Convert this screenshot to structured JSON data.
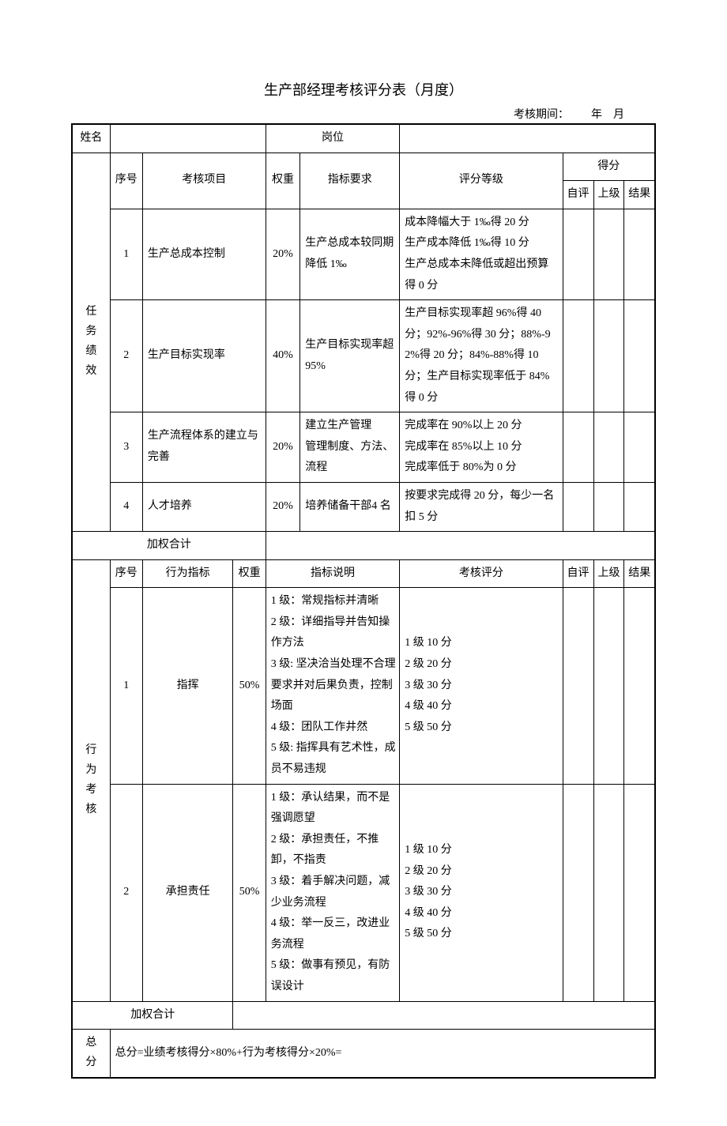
{
  "title": "生产部经理考核评分表（月度）",
  "period_prefix": "考核期间：",
  "period_year": "年",
  "period_month": "月",
  "header": {
    "name_label": "姓名",
    "position_label": "岗位"
  },
  "task_section": {
    "vertical_label": "任务绩效",
    "seq_label": "序号",
    "item_label": "考核项目",
    "weight_label": "权重",
    "req_label": "指标要求",
    "grade_label": "评分等级",
    "score_label": "得分",
    "self_label": "自评",
    "sup_label": "上级",
    "result_label": "结果",
    "rows": [
      {
        "no": "1",
        "item": "生产总成本控制",
        "weight": "20%",
        "requirement": "生产总成本较同期降低 1‰",
        "grade": "成本降幅大于 1‰得 20 分\n生产成本降低 1‰得 10 分\n生产总成本未降低或超出预算得 0 分"
      },
      {
        "no": "2",
        "item": "生产目标实现率",
        "weight": "40%",
        "requirement": "生产目标实现率超 95%",
        "grade": "生产目标实现率超 96%得 40 分；92%-96%得 30 分；88%-92%得 20 分；84%-88%得 10 分；生产目标实现率低于 84%得 0 分"
      },
      {
        "no": "3",
        "item": "生产流程体系的建立与完善",
        "weight": "20%",
        "requirement": "建立生产管理\n管理制度、方法、\n流程",
        "grade": "完成率在 90%以上 20 分\n完成率在 85%以上 10 分\n完成率低于 80%为 0 分"
      },
      {
        "no": "4",
        "item": "人才培养",
        "weight": "20%",
        "requirement": "培养储备干部4 名",
        "grade": "按要求完成得 20 分，每少一名扣 5 分"
      }
    ],
    "weighted_total_label": "加权合计"
  },
  "behavior_section": {
    "vertical_label": "行为考核",
    "seq_label": "序号",
    "item_label": "行为指标",
    "weight_label": "权重",
    "desc_label": "指标说明",
    "grade_label": "考核评分",
    "self_label": "自评",
    "sup_label": "上级",
    "result_label": "结果",
    "rows": [
      {
        "no": "1",
        "item": "指挥",
        "weight": "50%",
        "desc": "1 级：常规指标并清晰\n2 级：详细指导并告知操作方法\n3 级: 坚决洽当处理不合理要求并对后果负责，控制场面\n4 级：团队工作井然\n5 级: 指挥具有艺术性，成员不易违规",
        "grade": "1 级 10 分\n2 级 20 分\n3 级 30 分\n4 级 40 分\n5 级 50 分"
      },
      {
        "no": "2",
        "item": "承担责任",
        "weight": "50%",
        "desc": "1 级：承认结果，而不是强调愿望\n2 级：承担责任，不推卸，不指责\n3 级：着手解决问题，减少业务流程\n4 级：举一反三，改进业务流程\n5 级：做事有预见，有防误设计",
        "grade": "1 级 10 分\n2 级 20 分\n3 级 30 分\n4 级 40 分\n5 级 50 分"
      }
    ],
    "weighted_total_label": "加权合计"
  },
  "total_section": {
    "vertical_label": "总分",
    "formula": "总分=业绩考核得分×80%+行为考核得分×20%="
  }
}
